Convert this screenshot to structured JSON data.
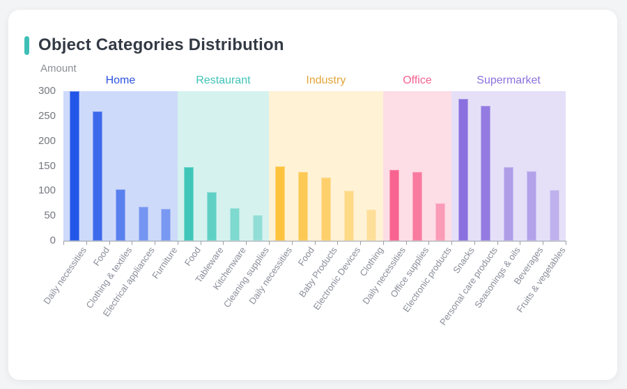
{
  "page": {
    "background": "#f3f4f6",
    "card_background": "#ffffff"
  },
  "header": {
    "title": "Object Categories Distribution",
    "accent_color": "#3fc0b7"
  },
  "chart_data": {
    "type": "bar",
    "title": "Object Categories Distribution",
    "xlabel": "",
    "ylabel": "Amount",
    "ylim": [
      0,
      300
    ],
    "yticks": [
      0,
      50,
      100,
      150,
      200,
      250,
      300
    ],
    "grid": false,
    "legend_position": "none",
    "band_alpha": 0.22,
    "axis_color": "#9aa0a6",
    "tick_label_color": "#74777e",
    "category_label_color": "#8a8d99",
    "groups": [
      {
        "name": "Home",
        "color": "#2256e8",
        "label_color": "#2c52de",
        "categories": [
          "Daily necessities",
          "Food",
          "Clothing & textiles",
          "Electrical appliances",
          "Furniture"
        ],
        "values": [
          300,
          259,
          103,
          69,
          64
        ],
        "alphas": [
          1,
          0.85,
          0.68,
          0.52,
          0.5
        ]
      },
      {
        "name": "Restaurant",
        "color": "#3fc6b8",
        "label_color": "#3fc2b7",
        "categories": [
          "Food",
          "Tableware",
          "Kitchenware",
          "Cleaning supplies"
        ],
        "values": [
          148,
          97,
          65,
          51
        ],
        "alphas": [
          1,
          0.78,
          0.58,
          0.45
        ]
      },
      {
        "name": "Industry",
        "color": "#fdc23e",
        "label_color": "#e2a43a",
        "categories": [
          "Daily necessities",
          "Food",
          "Baby Products",
          "Electronic Devices",
          "Clothing"
        ],
        "values": [
          150,
          138,
          127,
          100,
          63
        ],
        "alphas": [
          1,
          0.85,
          0.7,
          0.52,
          0.4
        ]
      },
      {
        "name": "Office",
        "color": "#f8648f",
        "label_color": "#f4618f",
        "categories": [
          "Daily necessities",
          "Office supplies",
          "Electronic products"
        ],
        "values": [
          142,
          138,
          75
        ],
        "alphas": [
          1,
          0.82,
          0.55
        ]
      },
      {
        "name": "Supermarket",
        "color": "#8a70de",
        "label_color": "#8a70dc",
        "categories": [
          "Snacks",
          "Personal care products",
          "Seasonings & oils",
          "Beverages",
          "Fruits & vegetables"
        ],
        "values": [
          285,
          271,
          148,
          140,
          102
        ],
        "alphas": [
          1,
          0.9,
          0.6,
          0.55,
          0.42
        ]
      }
    ]
  }
}
